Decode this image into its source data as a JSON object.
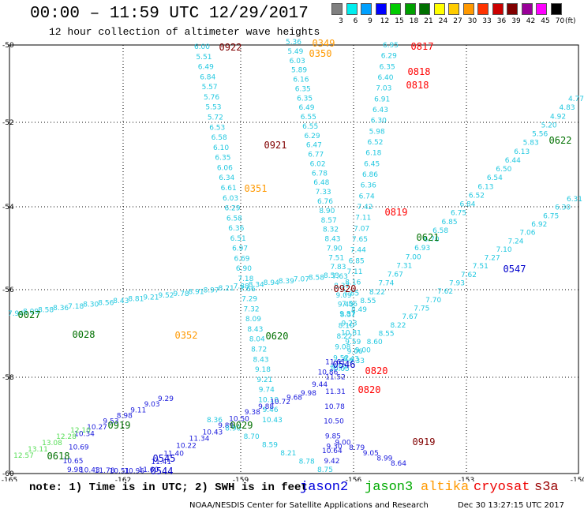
{
  "header": {
    "title": "00:00 – 11:59 UTC 12/29/2017",
    "subtitle": "12 hour collection of altimeter wave heights",
    "units": "(ft)"
  },
  "colorbar": {
    "labels": [
      "3",
      "6",
      "9",
      "12",
      "15",
      "18",
      "21",
      "24",
      "27",
      "30",
      "33",
      "36",
      "39",
      "42",
      "45",
      "70"
    ],
    "colors": [
      "#808080",
      "#00eeee",
      "#00a0ff",
      "#0000ff",
      "#00cc00",
      "#00a000",
      "#007000",
      "#ffff00",
      "#ffcc00",
      "#ff9900",
      "#ff3300",
      "#cc0000",
      "#800000",
      "#990099",
      "#ff00ff",
      "#000000"
    ]
  },
  "map": {
    "lon_ticks": [
      "-165",
      "-162",
      "-159",
      "-156",
      "-153",
      "-150"
    ],
    "lat_ticks": [
      "-50",
      "-52",
      "-54",
      "-56",
      "-58",
      "-60"
    ]
  },
  "passes": [
    {
      "label": "0922",
      "color": "#800000"
    },
    {
      "label": "0349",
      "color": "#ff9900"
    },
    {
      "label": "0350",
      "color": "#ff9900"
    },
    {
      "label": "0817",
      "color": "#ff0000"
    },
    {
      "label": "0818",
      "color": "#ff0000"
    },
    {
      "label": "0818",
      "color": "#ff0000"
    },
    {
      "label": "0921",
      "color": "#800000"
    },
    {
      "label": "0622",
      "color": "#007000"
    },
    {
      "label": "0351",
      "color": "#ff9900"
    },
    {
      "label": "0819",
      "color": "#ff0000"
    },
    {
      "label": "0621",
      "color": "#007000"
    },
    {
      "label": "0547",
      "color": "#0000cc"
    },
    {
      "label": "0920",
      "color": "#800000"
    },
    {
      "label": "0027",
      "color": "#007000"
    },
    {
      "label": "0028",
      "color": "#007000"
    },
    {
      "label": "0352",
      "color": "#ff9900"
    },
    {
      "label": "0620",
      "color": "#007000"
    },
    {
      "label": "0546",
      "color": "#0000cc"
    },
    {
      "label": "0820",
      "color": "#ff0000"
    },
    {
      "label": "0820",
      "color": "#ff0000"
    },
    {
      "label": "0919",
      "color": "#007000"
    },
    {
      "label": "0029",
      "color": "#007000"
    },
    {
      "label": "0919",
      "color": "#800000"
    },
    {
      "label": "0618",
      "color": "#007000"
    },
    {
      "label": "0545",
      "color": "#0000cc"
    },
    {
      "label": "0544",
      "color": "#0000cc"
    }
  ],
  "tracks": [
    {
      "name": "track-a",
      "color": "#22c8e0",
      "values": [
        "6.00",
        "5.51",
        "6.49",
        "6.84",
        "5.57",
        "5.76",
        "5.53",
        "5.72",
        "6.53",
        "6.58",
        "6.10",
        "6.35",
        "6.06",
        "6.34",
        "6.61",
        "6.03",
        "6.29",
        "6.58",
        "6.36",
        "6.51",
        "6.97",
        "6.69",
        "6.90",
        "7.18",
        "7.66",
        "7.29",
        "7.32",
        "8.09",
        "8.43",
        "8.04",
        "8.72",
        "8.43",
        "9.18",
        "9.21",
        "9.74",
        "10.10",
        "9.46",
        "10.43"
      ]
    },
    {
      "name": "track-b",
      "color": "#22c8e0",
      "values": [
        "5.36",
        "5.49",
        "6.03",
        "5.89",
        "6.16",
        "6.35",
        "6.35",
        "6.49",
        "6.55",
        "6.55",
        "6.29",
        "6.47",
        "6.77",
        "6.02",
        "6.78",
        "6.48",
        "7.33",
        "6.76",
        "8.90",
        "8.57",
        "8.32",
        "8.43",
        "7.90",
        "7.51",
        "7.83",
        "7.63",
        "8.37",
        "9.09",
        "9.40",
        "9.87",
        "9.23",
        "10.81",
        "9.59",
        "9.06",
        "9.33"
      ]
    },
    {
      "name": "track-c",
      "color": "#22c8e0",
      "values": [
        "6.95",
        "6.29",
        "6.35",
        "6.40",
        "7.03",
        "6.91",
        "6.43",
        "6.30",
        "5.98",
        "6.52",
        "6.18",
        "6.45",
        "6.86",
        "6.36",
        "6.74",
        "7.42",
        "7.11",
        "7.07",
        "7.65",
        "7.44",
        "6.85",
        "7.11",
        "8.16",
        "7.85",
        "7.56",
        "8.37",
        "8.10",
        "8.22",
        "9.08",
        "9.52",
        "10.05"
      ]
    },
    {
      "name": "track-d",
      "color": "#22c8e0",
      "values": [
        "7.94",
        "8.09",
        "8.58",
        "8.36",
        "7.18",
        "8.30",
        "8.56",
        "8.43",
        "8.81",
        "9.21",
        "9.52",
        "9.78",
        "8.91",
        "8.97",
        "8.21",
        "7.88",
        "8.34",
        "8.94",
        "8.39",
        "7.07",
        "8.58",
        "8.53"
      ]
    },
    {
      "name": "track-e",
      "color": "#22c8e0",
      "values": [
        "4.77",
        "4.83",
        "4.92",
        "5.20",
        "5.56",
        "5.83",
        "6.13",
        "6.44",
        "6.50",
        "6.54",
        "6.13",
        "6.52",
        "6.84",
        "6.75",
        "6.85",
        "6.58",
        "6.70",
        "6.93",
        "7.00",
        "7.31",
        "7.67",
        "7.74",
        "8.22",
        "8.55",
        "8.49"
      ]
    },
    {
      "name": "track-f",
      "color": "#22c8e0",
      "values": [
        "6.31",
        "6.30",
        "6.75",
        "6.92",
        "7.06",
        "7.24",
        "7.10",
        "7.27",
        "7.51",
        "7.62",
        "7.93",
        "7.62",
        "7.70",
        "7.75",
        "7.67",
        "8.22",
        "8.55",
        "8.60",
        "9.00",
        "8.43",
        "9.52"
      ]
    },
    {
      "name": "track-g",
      "color": "#1a1adc",
      "values": [
        "9.29",
        "9.03",
        "9.11",
        "8.98",
        "9.53",
        "10.27",
        "10.34",
        "10.69",
        "10.65",
        "9.98",
        "10.43",
        "11.78",
        "10.51",
        "10.96",
        "11.60",
        "11.41",
        "11.40",
        "10.22",
        "11.34",
        "10.43",
        "9.89",
        "10.50",
        "9.38",
        "9.88",
        "10.72",
        "9.68",
        "9.98",
        "9.44",
        "10.86",
        "11.61",
        "11.52",
        "11.31",
        "10.78",
        "10.50",
        "9.85",
        "10.64",
        "9.42",
        "9.30",
        "9.00",
        "8.79",
        "9.05",
        "8.99",
        "8.64"
      ]
    },
    {
      "name": "track-h",
      "color": "#22c8e0",
      "values": [
        "8.36",
        "8.90",
        "8.70",
        "8.59",
        "8.21",
        "8.78",
        "8.75"
      ]
    },
    {
      "name": "track-i",
      "color": "#55dd55",
      "values": [
        "12.10",
        "12.28",
        "13.08",
        "13.11",
        "12.57"
      ]
    }
  ],
  "legend": {
    "note": "note: 1) Time is in UTC; 2) SWH is in feet",
    "satellites": [
      {
        "name": "jason2",
        "color": "#0000dd"
      },
      {
        "name": "jason3",
        "color": "#00aa00"
      },
      {
        "name": "altika",
        "color": "#ff9900"
      },
      {
        "name": "cryosat",
        "color": "#ee0000"
      },
      {
        "name": "s3a",
        "color": "#990000"
      }
    ],
    "credit": "NOAA/NESDIS Center for Satellite Applications and Research",
    "timestamp": "Dec 30 13:27:15 UTC 2017"
  }
}
